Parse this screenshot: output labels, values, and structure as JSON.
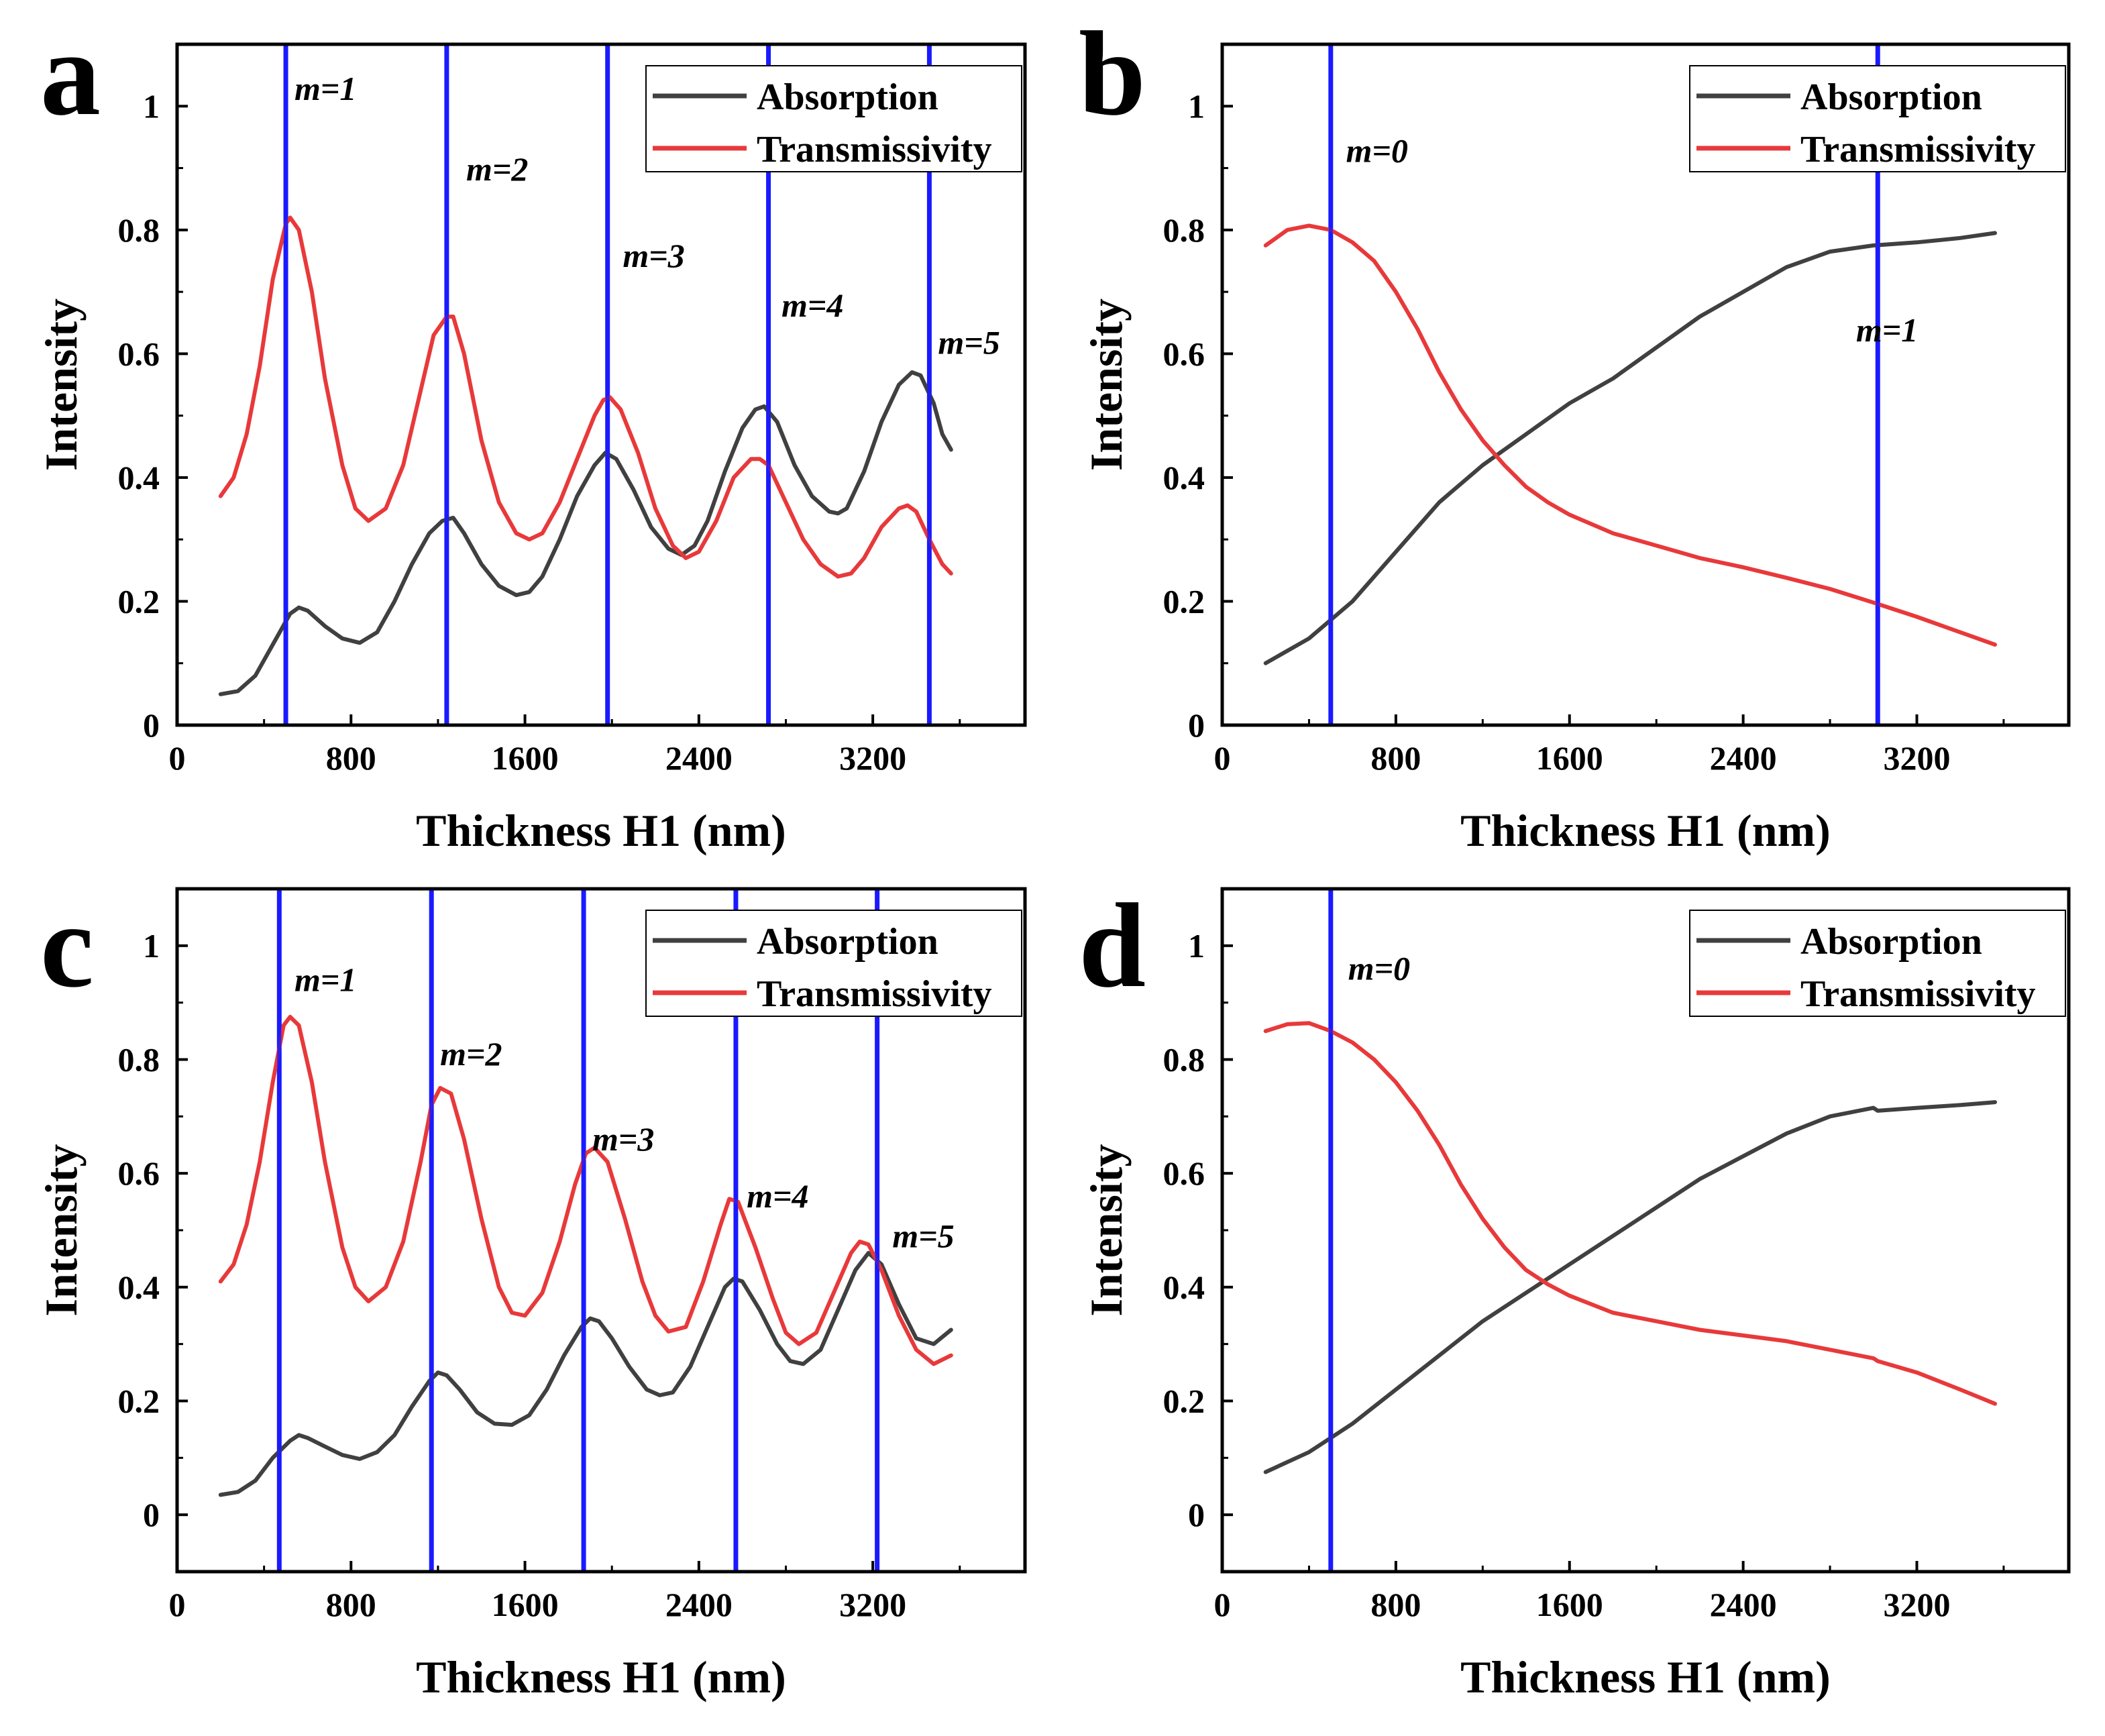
{
  "chart_data": [
    {
      "id": "a",
      "panel_label": "a",
      "type": "line",
      "xlabel": "Thickness H1 (nm)",
      "ylabel": "Intensity",
      "xlim": [
        0,
        3900
      ],
      "ylim": [
        0,
        1.1
      ],
      "xticks": [
        0,
        800,
        1600,
        2400,
        3200
      ],
      "yticks": [
        0,
        0.2,
        0.4,
        0.6,
        0.8,
        1
      ],
      "x_tick_labels": [
        "0",
        "800",
        "1600",
        "2400",
        "3200"
      ],
      "y_tick_labels": [
        "0",
        "0.2",
        "0.4",
        "0.6",
        "0.8",
        "1"
      ],
      "legend": {
        "position": "top-right",
        "entries": [
          "Absorption",
          "Transmissivity"
        ]
      },
      "series": [
        {
          "name": "Absorption",
          "color": "#404040",
          "x": [
            200,
            280,
            360,
            440,
            520,
            560,
            600,
            680,
            760,
            840,
            920,
            1000,
            1080,
            1160,
            1220,
            1270,
            1320,
            1400,
            1480,
            1560,
            1620,
            1680,
            1760,
            1840,
            1920,
            1970,
            2020,
            2100,
            2180,
            2260,
            2320,
            2380,
            2440,
            2520,
            2600,
            2660,
            2700,
            2760,
            2840,
            2920,
            3000,
            3040,
            3080,
            3160,
            3240,
            3320,
            3380,
            3420,
            3480,
            3520,
            3560
          ],
          "values": [
            0.05,
            0.055,
            0.08,
            0.13,
            0.18,
            0.19,
            0.185,
            0.16,
            0.14,
            0.133,
            0.15,
            0.2,
            0.26,
            0.31,
            0.33,
            0.335,
            0.31,
            0.26,
            0.225,
            0.21,
            0.215,
            0.24,
            0.3,
            0.37,
            0.42,
            0.44,
            0.43,
            0.38,
            0.32,
            0.285,
            0.275,
            0.29,
            0.33,
            0.41,
            0.48,
            0.51,
            0.515,
            0.49,
            0.42,
            0.37,
            0.345,
            0.342,
            0.35,
            0.41,
            0.49,
            0.55,
            0.57,
            0.565,
            0.52,
            0.47,
            0.445
          ]
        },
        {
          "name": "Transmissivity",
          "color": "#e8393a",
          "x": [
            200,
            260,
            320,
            380,
            440,
            500,
            520,
            560,
            620,
            680,
            760,
            820,
            880,
            960,
            1040,
            1120,
            1180,
            1240,
            1270,
            1320,
            1400,
            1480,
            1560,
            1620,
            1680,
            1760,
            1840,
            1920,
            1960,
            1990,
            2040,
            2120,
            2200,
            2280,
            2340,
            2400,
            2480,
            2560,
            2640,
            2680,
            2720,
            2800,
            2880,
            2960,
            3040,
            3100,
            3160,
            3240,
            3320,
            3360,
            3400,
            3460,
            3520,
            3560
          ],
          "values": [
            0.37,
            0.4,
            0.47,
            0.58,
            0.72,
            0.81,
            0.82,
            0.8,
            0.7,
            0.56,
            0.42,
            0.35,
            0.33,
            0.35,
            0.42,
            0.54,
            0.63,
            0.66,
            0.66,
            0.6,
            0.46,
            0.36,
            0.31,
            0.3,
            0.31,
            0.36,
            0.43,
            0.5,
            0.525,
            0.53,
            0.51,
            0.44,
            0.35,
            0.29,
            0.27,
            0.28,
            0.33,
            0.4,
            0.43,
            0.43,
            0.42,
            0.36,
            0.3,
            0.26,
            0.24,
            0.245,
            0.27,
            0.32,
            0.35,
            0.355,
            0.345,
            0.3,
            0.26,
            0.245
          ]
        }
      ],
      "vlines": [
        500,
        1240,
        1980,
        2720,
        3460
      ],
      "annotations": [
        {
          "text": "m=1",
          "x": 540,
          "y": 1.01
        },
        {
          "text": "m=2",
          "x": 1330,
          "y": 0.88
        },
        {
          "text": "m=3",
          "x": 2050,
          "y": 0.74
        },
        {
          "text": "m=4",
          "x": 2780,
          "y": 0.66
        },
        {
          "text": "m=5",
          "x": 3500,
          "y": 0.6
        }
      ]
    },
    {
      "id": "b",
      "panel_label": "b",
      "type": "line",
      "xlabel": "Thickness H1 (nm)",
      "ylabel": "Intensity",
      "xlim": [
        0,
        3900
      ],
      "ylim": [
        0,
        1.1
      ],
      "xticks": [
        0,
        800,
        1600,
        2400,
        3200
      ],
      "yticks": [
        0,
        0.2,
        0.4,
        0.6,
        0.8,
        1
      ],
      "x_tick_labels": [
        "0",
        "800",
        "1600",
        "2400",
        "3200"
      ],
      "y_tick_labels": [
        "0",
        "0.2",
        "0.4",
        "0.6",
        "0.8",
        "1"
      ],
      "legend": {
        "position": "top-right",
        "entries": [
          "Absorption",
          "Transmissivity"
        ]
      },
      "series": [
        {
          "name": "Absorption",
          "color": "#404040",
          "x": [
            200,
            400,
            600,
            800,
            1000,
            1200,
            1400,
            1600,
            1800,
            2000,
            2200,
            2400,
            2600,
            2800,
            3000,
            3200,
            3400,
            3560
          ],
          "values": [
            0.1,
            0.14,
            0.2,
            0.28,
            0.36,
            0.42,
            0.47,
            0.52,
            0.56,
            0.61,
            0.66,
            0.7,
            0.74,
            0.765,
            0.775,
            0.78,
            0.787,
            0.795
          ]
        },
        {
          "name": "Transmissivity",
          "color": "#e8393a",
          "x": [
            200,
            300,
            400,
            500,
            600,
            700,
            800,
            900,
            1000,
            1100,
            1200,
            1300,
            1400,
            1500,
            1600,
            1800,
            2000,
            2200,
            2400,
            2600,
            2800,
            3000,
            3200,
            3400,
            3560
          ],
          "values": [
            0.775,
            0.8,
            0.807,
            0.8,
            0.78,
            0.75,
            0.7,
            0.64,
            0.57,
            0.51,
            0.46,
            0.42,
            0.385,
            0.36,
            0.34,
            0.31,
            0.29,
            0.27,
            0.255,
            0.238,
            0.22,
            0.198,
            0.175,
            0.15,
            0.13
          ]
        }
      ],
      "vlines": [
        500,
        3020
      ],
      "annotations": [
        {
          "text": "m=0",
          "x": 570,
          "y": 0.91
        },
        {
          "text": "m=1",
          "x": 2920,
          "y": 0.62
        }
      ]
    },
    {
      "id": "c",
      "panel_label": "c",
      "type": "line",
      "xlabel": "Thickness H1 (nm)",
      "ylabel": "Intensity",
      "xlim": [
        0,
        3900
      ],
      "ylim": [
        -0.1,
        1.1
      ],
      "xticks": [
        0,
        800,
        1600,
        2400,
        3200
      ],
      "yticks": [
        0,
        0.2,
        0.4,
        0.6,
        0.8,
        1
      ],
      "x_tick_labels": [
        "0",
        "800",
        "1600",
        "2400",
        "3200"
      ],
      "y_tick_labels": [
        "0",
        "0.2",
        "0.4",
        "0.6",
        "0.8",
        "1"
      ],
      "legend": {
        "position": "top-right",
        "entries": [
          "Absorption",
          "Transmissivity"
        ]
      },
      "series": [
        {
          "name": "Absorption",
          "color": "#404040",
          "x": [
            200,
            280,
            360,
            440,
            520,
            560,
            600,
            680,
            760,
            840,
            920,
            1000,
            1080,
            1160,
            1200,
            1240,
            1300,
            1380,
            1460,
            1540,
            1620,
            1700,
            1780,
            1860,
            1900,
            1940,
            2000,
            2080,
            2160,
            2220,
            2280,
            2360,
            2440,
            2520,
            2560,
            2600,
            2680,
            2760,
            2820,
            2880,
            2960,
            3040,
            3120,
            3180,
            3240,
            3320,
            3400,
            3480,
            3560
          ],
          "values": [
            0.035,
            0.04,
            0.06,
            0.1,
            0.13,
            0.14,
            0.135,
            0.12,
            0.105,
            0.098,
            0.11,
            0.14,
            0.19,
            0.235,
            0.25,
            0.245,
            0.22,
            0.18,
            0.16,
            0.158,
            0.175,
            0.22,
            0.28,
            0.33,
            0.345,
            0.34,
            0.31,
            0.26,
            0.22,
            0.21,
            0.215,
            0.26,
            0.33,
            0.4,
            0.415,
            0.41,
            0.36,
            0.3,
            0.27,
            0.265,
            0.29,
            0.36,
            0.43,
            0.46,
            0.44,
            0.37,
            0.31,
            0.3,
            0.325
          ]
        },
        {
          "name": "Transmissivity",
          "color": "#e8393a",
          "x": [
            200,
            260,
            320,
            380,
            440,
            490,
            520,
            560,
            620,
            680,
            760,
            820,
            880,
            960,
            1040,
            1120,
            1170,
            1210,
            1260,
            1320,
            1400,
            1480,
            1540,
            1600,
            1680,
            1760,
            1830,
            1880,
            1920,
            1980,
            2060,
            2140,
            2200,
            2260,
            2340,
            2420,
            2500,
            2540,
            2580,
            2660,
            2740,
            2800,
            2860,
            2940,
            3020,
            3100,
            3140,
            3180,
            3240,
            3320,
            3400,
            3480,
            3560
          ],
          "values": [
            0.41,
            0.44,
            0.51,
            0.62,
            0.76,
            0.86,
            0.875,
            0.86,
            0.76,
            0.62,
            0.47,
            0.4,
            0.375,
            0.4,
            0.48,
            0.62,
            0.72,
            0.75,
            0.74,
            0.66,
            0.52,
            0.4,
            0.355,
            0.35,
            0.39,
            0.48,
            0.58,
            0.635,
            0.645,
            0.62,
            0.52,
            0.41,
            0.35,
            0.322,
            0.33,
            0.41,
            0.51,
            0.555,
            0.55,
            0.47,
            0.38,
            0.32,
            0.3,
            0.32,
            0.39,
            0.46,
            0.48,
            0.475,
            0.43,
            0.35,
            0.29,
            0.265,
            0.28
          ]
        }
      ],
      "vlines": [
        470,
        1170,
        1870,
        2570,
        3220
      ],
      "annotations": [
        {
          "text": "m=1",
          "x": 540,
          "y": 0.92
        },
        {
          "text": "m=2",
          "x": 1210,
          "y": 0.79
        },
        {
          "text": "m=3",
          "x": 1910,
          "y": 0.64
        },
        {
          "text": "m=4",
          "x": 2620,
          "y": 0.54
        },
        {
          "text": "m=5",
          "x": 3290,
          "y": 0.47
        }
      ]
    },
    {
      "id": "d",
      "panel_label": "d",
      "type": "line",
      "xlabel": "Thickness H1 (nm)",
      "ylabel": "Intensity",
      "xlim": [
        0,
        3900
      ],
      "ylim": [
        -0.1,
        1.1
      ],
      "xticks": [
        0,
        800,
        1600,
        2400,
        3200
      ],
      "yticks": [
        0,
        0.2,
        0.4,
        0.6,
        0.8,
        1
      ],
      "x_tick_labels": [
        "0",
        "800",
        "1600",
        "2400",
        "3200"
      ],
      "y_tick_labels": [
        "0",
        "0.2",
        "0.4",
        "0.6",
        "0.8",
        "1"
      ],
      "legend": {
        "position": "top-right",
        "entries": [
          "Absorption",
          "Transmissivity"
        ]
      },
      "series": [
        {
          "name": "Absorption",
          "color": "#404040",
          "x": [
            200,
            400,
            600,
            800,
            1000,
            1200,
            1400,
            1600,
            1800,
            2000,
            2200,
            2400,
            2600,
            2800,
            3000,
            3020,
            3200,
            3400,
            3560
          ],
          "values": [
            0.075,
            0.11,
            0.16,
            0.22,
            0.28,
            0.34,
            0.39,
            0.44,
            0.49,
            0.54,
            0.59,
            0.63,
            0.67,
            0.7,
            0.715,
            0.71,
            0.715,
            0.72,
            0.725
          ]
        },
        {
          "name": "Transmissivity",
          "color": "#e8393a",
          "x": [
            200,
            300,
            400,
            500,
            600,
            700,
            800,
            900,
            1000,
            1100,
            1200,
            1300,
            1400,
            1500,
            1600,
            1800,
            2000,
            2200,
            2400,
            2600,
            2800,
            3000,
            3020,
            3200,
            3400,
            3560
          ],
          "values": [
            0.85,
            0.862,
            0.864,
            0.85,
            0.83,
            0.8,
            0.76,
            0.71,
            0.65,
            0.58,
            0.52,
            0.47,
            0.43,
            0.405,
            0.385,
            0.355,
            0.34,
            0.325,
            0.315,
            0.305,
            0.29,
            0.275,
            0.27,
            0.25,
            0.22,
            0.195
          ]
        }
      ],
      "vlines": [
        500
      ],
      "annotations": [
        {
          "text": "m=0",
          "x": 580,
          "y": 0.94
        }
      ]
    }
  ]
}
